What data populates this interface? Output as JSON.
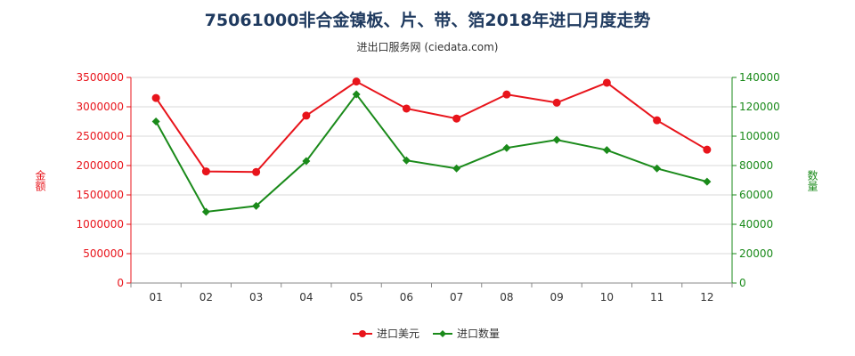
{
  "chart_data": {
    "type": "line",
    "title": "75061000非合金镍板、片、带、箔2018年进口月度走势",
    "subtitle": "进出口服务网 (ciedata.com)",
    "categories": [
      "01",
      "02",
      "03",
      "04",
      "05",
      "06",
      "07",
      "08",
      "09",
      "10",
      "11",
      "12"
    ],
    "y_left": {
      "label": "金额",
      "ylim": [
        0,
        3500000
      ],
      "ticks": [
        "0",
        "500000",
        "1000000",
        "1500000",
        "2000000",
        "2500000",
        "3000000",
        "3500000"
      ],
      "color": "#e8141b"
    },
    "y_right": {
      "label": "数量",
      "ylim": [
        0,
        140000
      ],
      "ticks": [
        "0",
        "20000",
        "40000",
        "60000",
        "80000",
        "100000",
        "120000",
        "140000"
      ],
      "color": "#1a8a1a"
    },
    "series": [
      {
        "name": "进口美元",
        "axis": "left",
        "color": "#e8141b",
        "marker": "circle",
        "values": [
          3150000,
          1900000,
          1890000,
          2850000,
          3430000,
          2970000,
          2800000,
          3210000,
          3070000,
          3410000,
          2770000,
          2270000
        ]
      },
      {
        "name": "进口数量",
        "axis": "right",
        "color": "#1a8a1a",
        "marker": "diamond",
        "values": [
          110000,
          48500,
          52500,
          83000,
          128500,
          83500,
          78000,
          92000,
          97500,
          90500,
          78000,
          69000
        ]
      }
    ],
    "grid": true,
    "legend": "bottom-center"
  }
}
